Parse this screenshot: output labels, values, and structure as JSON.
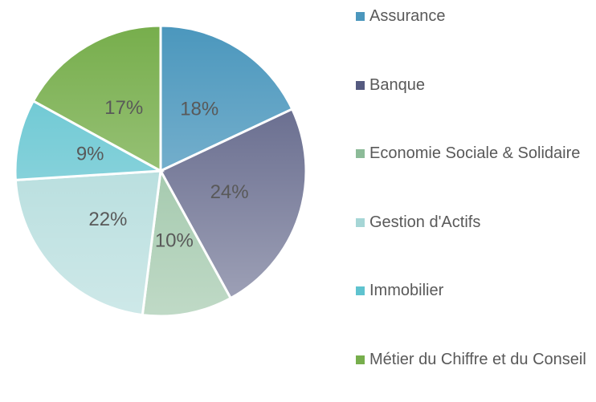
{
  "chart_data": {
    "type": "pie",
    "categories": [
      "Assurance",
      "Banque",
      "Economie Sociale & Solidaire",
      "Gestion d'Actifs",
      "Immobilier",
      "Métier du Chiffre et du Conseil"
    ],
    "values": [
      18,
      24,
      10,
      22,
      9,
      17
    ],
    "value_labels": [
      "18%",
      "24%",
      "10%",
      "22%",
      "9%",
      "17%"
    ],
    "colors": [
      "#4b97bd",
      "#555a80",
      "#8cbb98",
      "#a6d6d6",
      "#5fc3cf",
      "#77ae4c"
    ],
    "legend": "right"
  }
}
